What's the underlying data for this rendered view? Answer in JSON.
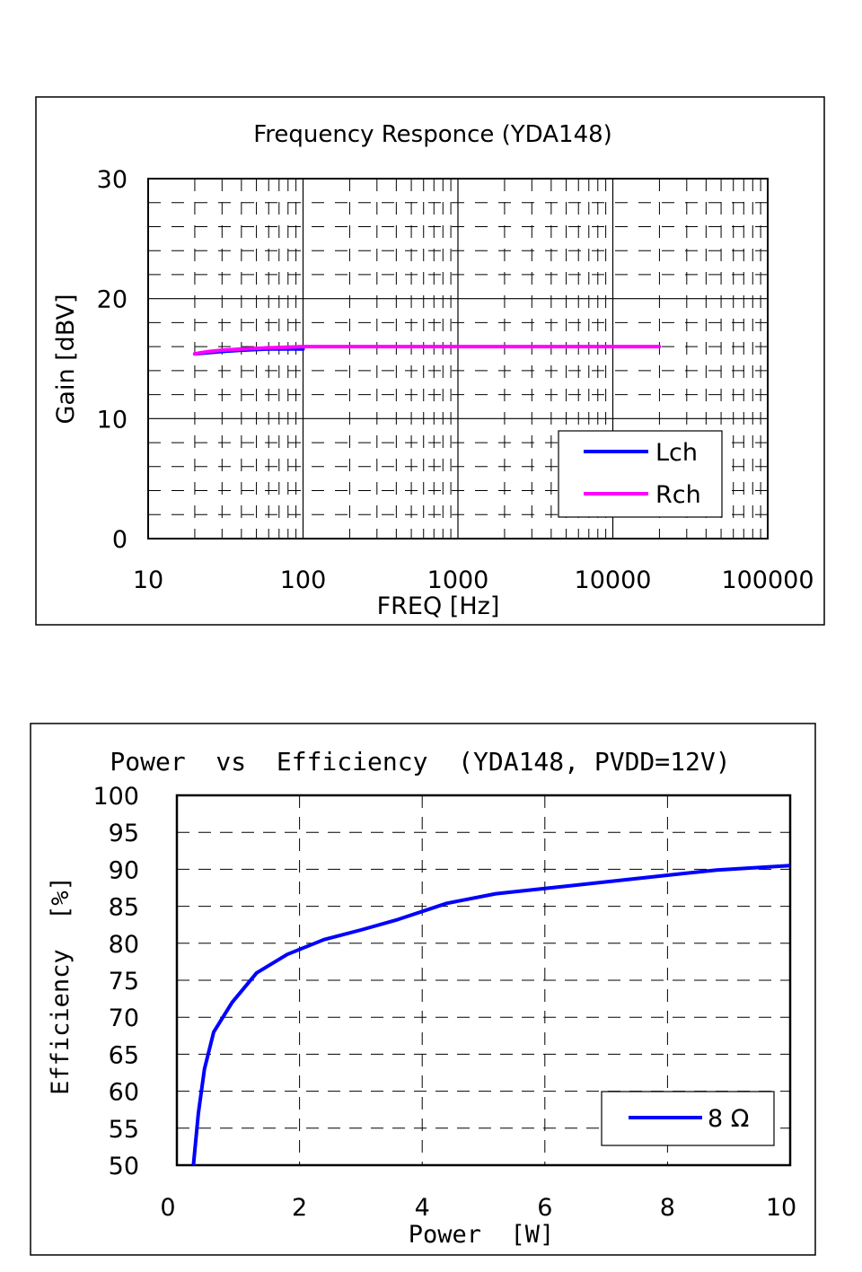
{
  "chart_data": [
    {
      "type": "line",
      "title": "Frequency Responce (YDA148)",
      "xlabel": "FREQ [Hz]",
      "ylabel": "Gain [dBV]",
      "xscale": "log",
      "xlim": [
        10,
        100000
      ],
      "ylim": [
        0,
        30
      ],
      "xticks": [
        "10",
        "100",
        "1000",
        "10000",
        "100000"
      ],
      "yticks": [
        "0",
        "10",
        "20",
        "30"
      ],
      "grid": true,
      "legend_position": "bottom-right",
      "series": [
        {
          "name": "Lch",
          "color": "#0000ff",
          "x": [
            20,
            25,
            30,
            40,
            60,
            100
          ],
          "y": [
            15.4,
            15.5,
            15.6,
            15.7,
            15.8,
            15.8
          ]
        },
        {
          "name": "Rch",
          "color": "#ff00ff",
          "x": [
            20,
            22,
            25,
            30,
            40,
            60,
            100,
            200,
            1000,
            10000,
            20000
          ],
          "y": [
            15.4,
            15.5,
            15.6,
            15.7,
            15.8,
            15.9,
            16.0,
            16.0,
            16.0,
            16.0,
            16.0
          ]
        }
      ]
    },
    {
      "type": "line",
      "title": "Power  vs  Efficiency  (YDA148, PVDD=12V)",
      "xlabel": "Power  [W]",
      "ylabel": "Efficiency  [%]",
      "xlim": [
        0,
        10
      ],
      "ylim": [
        50,
        100
      ],
      "xticks": [
        "0",
        "2",
        "4",
        "6",
        "8",
        "10"
      ],
      "yticks": [
        "50",
        "55",
        "60",
        "65",
        "70",
        "75",
        "80",
        "85",
        "90",
        "95",
        "100"
      ],
      "grid": true,
      "legend_position": "bottom-right",
      "series": [
        {
          "name": "8 Ω",
          "color": "#0000ff",
          "x": [
            0.27,
            0.35,
            0.45,
            0.6,
            0.9,
            1.3,
            1.8,
            2.4,
            3.0,
            3.6,
            4.4,
            5.2,
            6.0,
            7.0,
            8.0,
            8.8,
            10.0
          ],
          "y": [
            50,
            57,
            63,
            68,
            72,
            76,
            78.5,
            80.5,
            81.8,
            83.2,
            85.4,
            86.7,
            87.4,
            88.3,
            89.2,
            89.9,
            90.5
          ]
        }
      ]
    }
  ]
}
